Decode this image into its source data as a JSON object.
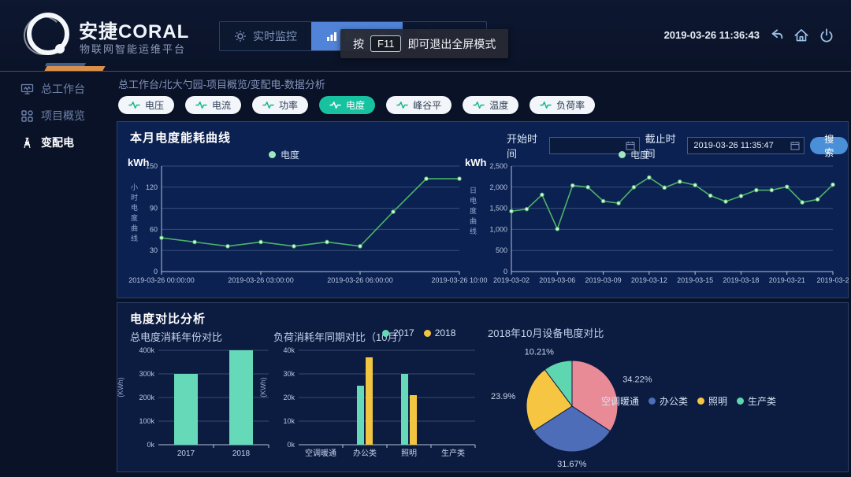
{
  "colors": {
    "accent_green": "#17c2a0",
    "line_green": "#4db368",
    "nav_active_blue": "#5184d8",
    "search_blue": "#4a90d9",
    "bar_teal": "#66d9b8",
    "bar_yellow": "#f2c541",
    "pie_pink": "#e98b97",
    "pie_blue": "#4d6db8",
    "pie_yellow": "#f6c643",
    "pie_teal": "#5ed6b0"
  },
  "header": {
    "logo_title": "安捷CORAL",
    "logo_subtitle": "物联网智能运维平台",
    "nav": [
      {
        "label": "实时监控",
        "icon": "gear-icon",
        "active": false
      },
      {
        "label": "数据分析",
        "icon": "bar-chart-icon",
        "active": true
      },
      {
        "label": "",
        "icon": "monitor-icon",
        "active": false
      }
    ],
    "fullscreen_tip": {
      "prefix": "按",
      "key": "F11",
      "suffix": "即可退出全屏模式"
    },
    "timestamp": "2019-03-26 11:36:43"
  },
  "sidebar": {
    "items": [
      {
        "label": "总工作台",
        "icon": "workbench-icon",
        "active": false
      },
      {
        "label": "项目概览",
        "icon": "overview-icon",
        "active": false
      },
      {
        "label": "变配电",
        "icon": "power-tower-icon",
        "active": true
      }
    ]
  },
  "breadcrumb": "总工作台/北大勺园-项目概览/变配电-数据分析",
  "tabs": [
    {
      "label": "电压",
      "active": false
    },
    {
      "label": "电流",
      "active": false
    },
    {
      "label": "功率",
      "active": false
    },
    {
      "label": "电度",
      "active": true
    },
    {
      "label": "峰谷平",
      "active": false
    },
    {
      "label": "温度",
      "active": false
    },
    {
      "label": "负荷率",
      "active": false
    }
  ],
  "top_panel": {
    "title": "本月电度能耗曲线",
    "legend_left": "电度",
    "legend_right": "电度",
    "start_label": "开始时间",
    "start_value": "",
    "end_label": "截止时间",
    "end_value": "2019-03-26 11:35:47",
    "search_label": "搜索"
  },
  "bottom_panel": {
    "title": "电度对比分析"
  },
  "chart_data": [
    {
      "type": "line",
      "title": "本月电度能耗曲线",
      "legend": "电度",
      "ylabel": "kWh",
      "axis_name": "小时电度曲线",
      "ylim": [
        0,
        150
      ],
      "yticks": [
        {
          "v": 0,
          "label": "0"
        },
        {
          "v": 30,
          "label": "30"
        },
        {
          "v": 60,
          "label": "60"
        },
        {
          "v": 90,
          "label": "90"
        },
        {
          "v": 120,
          "label": "120"
        },
        {
          "v": 150,
          "label": "150"
        }
      ],
      "values": [
        48,
        42,
        36,
        42,
        36,
        42,
        36,
        85,
        132,
        132
      ],
      "xticks": [
        {
          "i": 0,
          "label": "2019-03-26 00:00:00"
        },
        {
          "i": 3,
          "label": "2019-03-26 03:00:00"
        },
        {
          "i": 6,
          "label": "2019-03-26 06:00:00"
        },
        {
          "i": 9,
          "label": "2019-03-26 10:00"
        }
      ]
    },
    {
      "type": "line",
      "title": "",
      "legend": "电度",
      "ylabel": "kWh",
      "axis_name": "日电度曲线",
      "ylim": [
        0,
        2500
      ],
      "yticks": [
        {
          "v": 0,
          "label": "0"
        },
        {
          "v": 500,
          "label": "500"
        },
        {
          "v": 1000,
          "label": "1,000"
        },
        {
          "v": 1500,
          "label": "1,500"
        },
        {
          "v": 2000,
          "label": "2,000"
        },
        {
          "v": 2500,
          "label": "2,500"
        }
      ],
      "values": [
        1430,
        1480,
        1820,
        1010,
        2040,
        2000,
        1670,
        1620,
        2000,
        2230,
        1990,
        2130,
        2050,
        1800,
        1660,
        1790,
        1930,
        1930,
        2010,
        1640,
        1710,
        2060
      ],
      "xticks": [
        {
          "i": 0,
          "label": "2019-03-02"
        },
        {
          "i": 3,
          "label": "2019-03-06"
        },
        {
          "i": 6,
          "label": "2019-03-09"
        },
        {
          "i": 9,
          "label": "2019-03-12"
        },
        {
          "i": 12,
          "label": "2019-03-15"
        },
        {
          "i": 15,
          "label": "2019-03-18"
        },
        {
          "i": 18,
          "label": "2019-03-21"
        },
        {
          "i": 21,
          "label": "2019-03-2"
        }
      ]
    },
    {
      "type": "bar",
      "title": "总电度消耗年份对比",
      "ylabel": "(KWh)",
      "categories": [
        "2017",
        "2018"
      ],
      "series": [
        {
          "name": "电度",
          "color": "#66d9b8",
          "values": [
            300,
            400
          ]
        }
      ],
      "ylim": [
        0,
        400
      ],
      "yticks": [
        {
          "v": 0,
          "label": "0k"
        },
        {
          "v": 100,
          "label": "100k"
        },
        {
          "v": 200,
          "label": "200k"
        },
        {
          "v": 300,
          "label": "300k"
        },
        {
          "v": 400,
          "label": "400k"
        }
      ]
    },
    {
      "type": "bar",
      "title": "负荷消耗年同期对比（10月）",
      "ylabel": "(KWh)",
      "categories": [
        "空调暖通",
        "办公类",
        "照明",
        "生产类"
      ],
      "series": [
        {
          "name": "2017",
          "color": "#66d9b8",
          "values": [
            0,
            25,
            30,
            0
          ]
        },
        {
          "name": "2018",
          "color": "#f2c541",
          "values": [
            0,
            37,
            21,
            0
          ]
        }
      ],
      "ylim": [
        0,
        40
      ],
      "yticks": [
        {
          "v": 0,
          "label": "0k"
        },
        {
          "v": 10,
          "label": "10k"
        },
        {
          "v": 20,
          "label": "20k"
        },
        {
          "v": 30,
          "label": "30k"
        },
        {
          "v": 40,
          "label": "40k"
        }
      ]
    },
    {
      "type": "pie",
      "title": "2018年10月设备电度对比",
      "slices": [
        {
          "name": "空调暖通",
          "value": 34.22,
          "label": "34.22%",
          "color": "#e98b97"
        },
        {
          "name": "办公类",
          "value": 31.67,
          "label": "31.67%",
          "color": "#4d6db8"
        },
        {
          "name": "照明",
          "value": 23.9,
          "label": "23.9%",
          "color": "#f6c643"
        },
        {
          "name": "生产类",
          "value": 10.21,
          "label": "10.21%",
          "color": "#5ed6b0"
        }
      ]
    }
  ]
}
